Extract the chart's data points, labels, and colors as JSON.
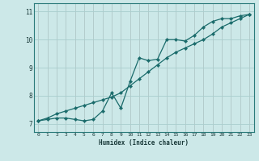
{
  "xlabel": "Humidex (Indice chaleur)",
  "xlim": [
    -0.5,
    23.5
  ],
  "ylim": [
    6.7,
    11.3
  ],
  "yticks": [
    7,
    8,
    9,
    10,
    11
  ],
  "xticks": [
    0,
    1,
    2,
    3,
    4,
    5,
    6,
    7,
    8,
    9,
    10,
    11,
    12,
    13,
    14,
    15,
    16,
    17,
    18,
    19,
    20,
    21,
    22,
    23
  ],
  "bg_color": "#cce8e8",
  "line_color": "#1a6b6b",
  "grid_color": "#aacfcf",
  "series1_x": [
    0,
    1,
    2,
    3,
    4,
    5,
    6,
    7,
    8,
    9,
    10,
    11,
    12,
    13,
    14,
    15,
    16,
    17,
    18,
    19,
    20,
    21,
    22,
    23
  ],
  "series1_y": [
    7.1,
    7.15,
    7.2,
    7.2,
    7.15,
    7.1,
    7.15,
    7.45,
    8.1,
    7.55,
    8.5,
    9.35,
    9.25,
    9.3,
    10.0,
    10.0,
    9.95,
    10.15,
    10.45,
    10.65,
    10.75,
    10.75,
    10.85,
    10.9
  ],
  "series2_x": [
    0,
    1,
    2,
    3,
    4,
    5,
    6,
    7,
    8,
    9,
    10,
    11,
    12,
    13,
    14,
    15,
    16,
    17,
    18,
    19,
    20,
    21,
    22,
    23
  ],
  "series2_y": [
    7.1,
    7.2,
    7.35,
    7.45,
    7.55,
    7.65,
    7.75,
    7.85,
    7.95,
    8.1,
    8.35,
    8.6,
    8.85,
    9.1,
    9.35,
    9.55,
    9.7,
    9.85,
    10.0,
    10.2,
    10.45,
    10.6,
    10.75,
    10.9
  ]
}
